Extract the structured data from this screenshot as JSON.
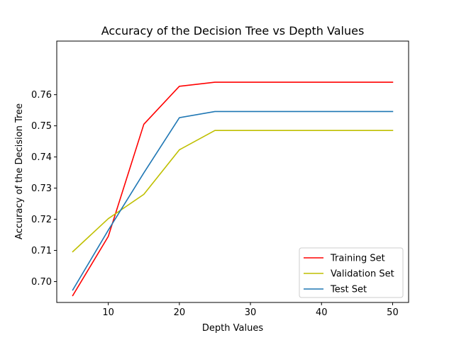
{
  "chart_data": {
    "type": "line",
    "title": "Accuracy of the Decision Tree vs Depth Values",
    "xlabel": "Depth Values",
    "ylabel": "Accuracy of the Decision Tree",
    "x": [
      5,
      10,
      15,
      20,
      25,
      30,
      35,
      40,
      45,
      50
    ],
    "xlim": [
      2.75,
      52.25
    ],
    "ylim": [
      0.6933,
      0.7772
    ],
    "xticks": [
      10,
      20,
      30,
      40,
      50
    ],
    "yticks": [
      0.7,
      0.71,
      0.72,
      0.73,
      0.74,
      0.75,
      0.76
    ],
    "ytick_labels": [
      "0.70",
      "0.71",
      "0.72",
      "0.73",
      "0.74",
      "0.75",
      "0.76"
    ],
    "grid": false,
    "legend_position": "lower-right",
    "series": [
      {
        "name": "Training Set",
        "color": "#ff0000",
        "values": [
          0.6955,
          0.7145,
          0.7505,
          0.7627,
          0.764,
          0.764,
          0.764,
          0.764,
          0.764,
          0.764
        ]
      },
      {
        "name": "Validation Set",
        "color": "#bfbf00",
        "values": [
          0.7096,
          0.7202,
          0.728,
          0.7423,
          0.7485,
          0.7485,
          0.7485,
          0.7485,
          0.7485,
          0.7485
        ]
      },
      {
        "name": "Test Set",
        "color": "#1f77b4",
        "values": [
          0.6973,
          0.7165,
          0.7349,
          0.7526,
          0.7546,
          0.7546,
          0.7546,
          0.7546,
          0.7546,
          0.7546
        ]
      }
    ]
  }
}
